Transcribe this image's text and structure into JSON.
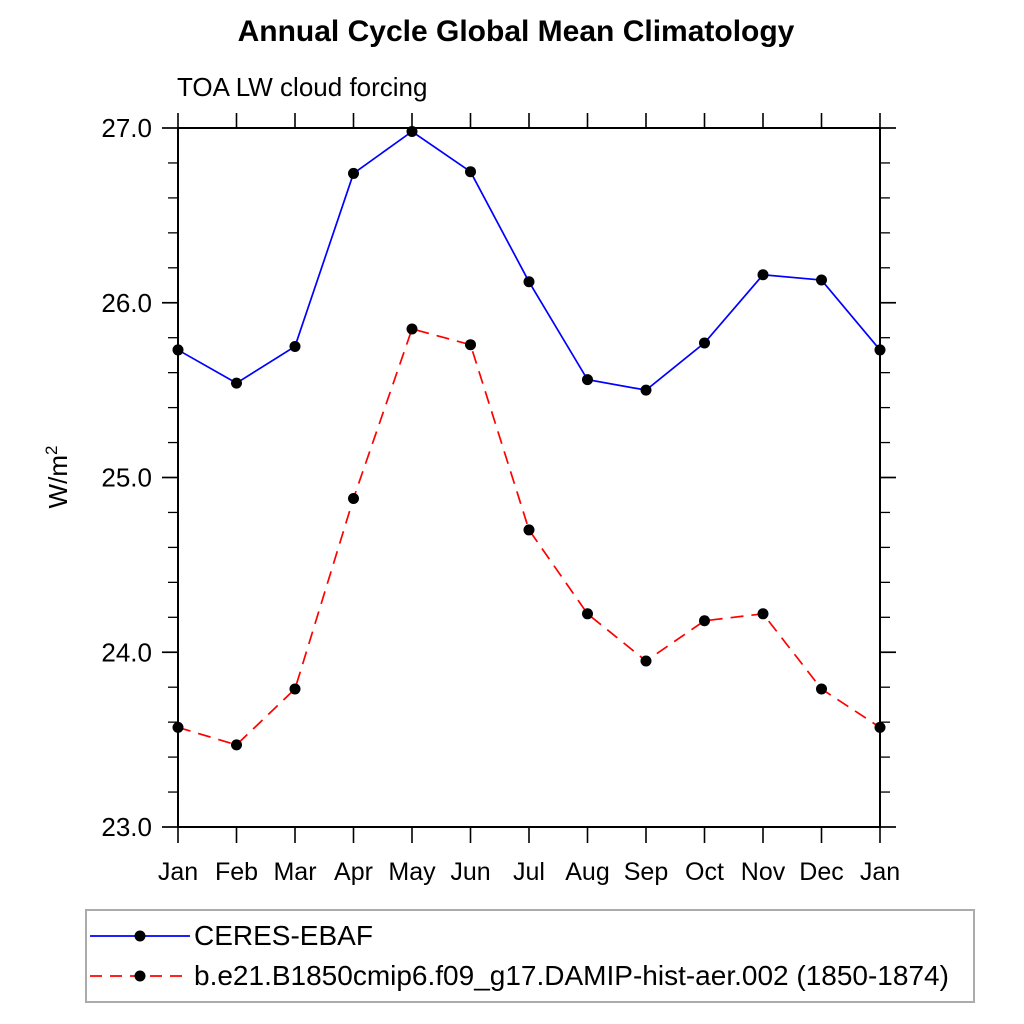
{
  "chart_data": {
    "type": "line",
    "title": "Annual Cycle Global Mean Climatology",
    "subtitle": "TOA LW cloud forcing",
    "ylabel_base": "W/m",
    "ylabel_superscript": "2",
    "categories": [
      "Jan",
      "Feb",
      "Mar",
      "Apr",
      "May",
      "Jun",
      "Jul",
      "Aug",
      "Sep",
      "Oct",
      "Nov",
      "Dec",
      "Jan"
    ],
    "ylim": [
      23.0,
      27.0
    ],
    "ytick_labels": [
      "23.0",
      "24.0",
      "25.0",
      "26.0",
      "27.0"
    ],
    "ytick_values": [
      23.0,
      24.0,
      25.0,
      26.0,
      27.0
    ],
    "ytick_minor_step": 0.2,
    "grid": false,
    "legend_position": "bottom-left-box",
    "axis_color": "#000000",
    "marker_color": "#000000",
    "series": [
      {
        "name": "CERES-EBAF",
        "color": "#0000ff",
        "line_style": "solid",
        "marker": "circle",
        "values": [
          25.73,
          25.54,
          25.75,
          26.74,
          26.98,
          26.75,
          26.12,
          25.56,
          25.5,
          25.77,
          26.16,
          26.13,
          25.73
        ]
      },
      {
        "name": "b.e21.B1850cmip6.f09_g17.DAMIP-hist-aer.002 (1850-1874)",
        "color": "#ff0000",
        "line_style": "dashed",
        "marker": "circle",
        "values": [
          23.57,
          23.47,
          23.79,
          24.88,
          25.85,
          25.76,
          24.7,
          24.22,
          23.95,
          24.18,
          24.22,
          23.79,
          23.57
        ]
      }
    ]
  }
}
